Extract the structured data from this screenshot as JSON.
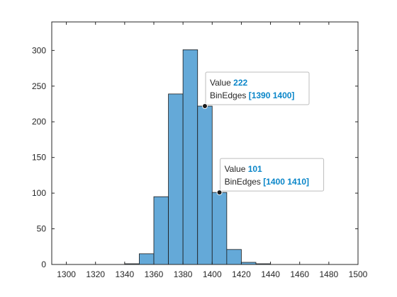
{
  "chart_data": {
    "type": "bar",
    "title": "",
    "xlabel": "",
    "ylabel": "",
    "xlim": [
      1290,
      1500
    ],
    "ylim": [
      0,
      340
    ],
    "xticks": [
      1300,
      1320,
      1340,
      1360,
      1380,
      1400,
      1420,
      1440,
      1460,
      1480,
      1500
    ],
    "yticks": [
      0,
      50,
      100,
      150,
      200,
      250,
      300
    ],
    "grid": false,
    "bar_color": "#64a9d8",
    "edge_color": "#1a1a1a",
    "bins": [
      {
        "edges": [
          1300,
          1310
        ],
        "value": 0
      },
      {
        "edges": [
          1310,
          1320
        ],
        "value": 0
      },
      {
        "edges": [
          1320,
          1330
        ],
        "value": 0
      },
      {
        "edges": [
          1330,
          1340
        ],
        "value": 0
      },
      {
        "edges": [
          1340,
          1350
        ],
        "value": 1
      },
      {
        "edges": [
          1350,
          1360
        ],
        "value": 15
      },
      {
        "edges": [
          1360,
          1370
        ],
        "value": 95
      },
      {
        "edges": [
          1370,
          1380
        ],
        "value": 239
      },
      {
        "edges": [
          1380,
          1390
        ],
        "value": 301
      },
      {
        "edges": [
          1390,
          1400
        ],
        "value": 222
      },
      {
        "edges": [
          1400,
          1410
        ],
        "value": 101
      },
      {
        "edges": [
          1410,
          1420
        ],
        "value": 21
      },
      {
        "edges": [
          1420,
          1430
        ],
        "value": 3
      },
      {
        "edges": [
          1430,
          1440
        ],
        "value": 1
      },
      {
        "edges": [
          1440,
          1450
        ],
        "value": 0
      },
      {
        "edges": [
          1450,
          1460
        ],
        "value": 0
      },
      {
        "edges": [
          1460,
          1470
        ],
        "value": 0
      },
      {
        "edges": [
          1470,
          1480
        ],
        "value": 0
      },
      {
        "edges": [
          1480,
          1490
        ],
        "value": 0
      },
      {
        "edges": [
          1490,
          1500
        ],
        "value": 0
      }
    ],
    "datatips": [
      {
        "value_label": "Value",
        "value": "222",
        "edges_label": "BinEdges",
        "edges": "[1390 1400]",
        "x": 1395,
        "y": 222
      },
      {
        "value_label": "Value",
        "value": "101",
        "edges_label": "BinEdges",
        "edges": "[1400 1410]",
        "x": 1405,
        "y": 101
      }
    ]
  }
}
